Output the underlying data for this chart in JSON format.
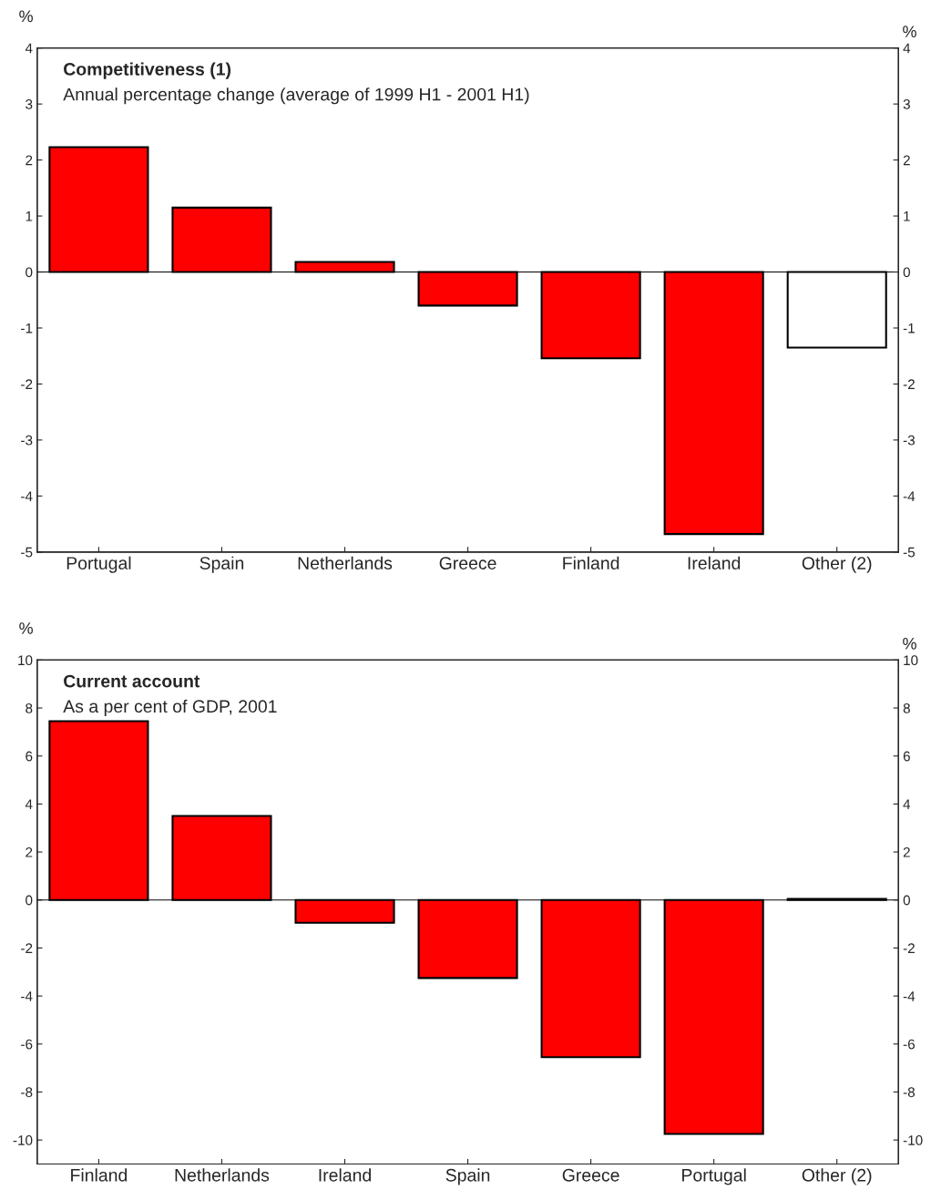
{
  "chart_data": [
    {
      "type": "bar",
      "title": "Competitiveness (1)",
      "subtitle": "Annual percentage change (average of 1999 H1 - 2001 H1)",
      "ylabel": "%",
      "y2label": "%",
      "categories": [
        "Portugal",
        "Spain",
        "Netherlands",
        "Greece",
        "Finland",
        "Ireland",
        "Other (2)"
      ],
      "values": [
        2.23,
        1.15,
        0.18,
        -0.6,
        -1.54,
        -4.68,
        -1.35
      ],
      "colors": [
        "#ff0000",
        "#ff0000",
        "#ff0000",
        "#ff0000",
        "#ff0000",
        "#ff0000",
        "#ffffff"
      ],
      "ref_lines": [
        {
          "axis": "y",
          "value": 0
        }
      ],
      "ylim": [
        -5,
        4
      ],
      "yticks": [
        -5,
        -4,
        -3,
        -2,
        -1,
        0,
        1,
        2,
        3,
        4
      ],
      "y2lim": [
        -5,
        4
      ],
      "y2ticks": [
        -5,
        -4,
        -3,
        -2,
        -1,
        0,
        1,
        2,
        3,
        4
      ],
      "grid": false,
      "legend": false
    },
    {
      "type": "bar",
      "title": "Current account",
      "subtitle": "As a per cent of GDP, 2001",
      "ylabel": "%",
      "y2label": "%",
      "categories": [
        "Finland",
        "Netherlands",
        "Ireland",
        "Spain",
        "Greece",
        "Portugal",
        "Other (2)"
      ],
      "values": [
        7.45,
        3.5,
        -0.95,
        -3.25,
        -6.55,
        -9.75,
        0.05
      ],
      "colors": [
        "#ff0000",
        "#ff0000",
        "#ff0000",
        "#ff0000",
        "#ff0000",
        "#ff0000",
        "#ff0000"
      ],
      "ref_lines": [
        {
          "axis": "y",
          "value": 0
        }
      ],
      "ylim": [
        -11,
        10
      ],
      "yticks": [
        -10,
        -8,
        -6,
        -4,
        -2,
        0,
        2,
        4,
        6,
        8,
        10
      ],
      "y2lim": [
        -11,
        10
      ],
      "y2ticks": [
        -10,
        -8,
        -6,
        -4,
        -2,
        0,
        2,
        4,
        6,
        8,
        10
      ],
      "grid": false,
      "legend": false
    }
  ]
}
